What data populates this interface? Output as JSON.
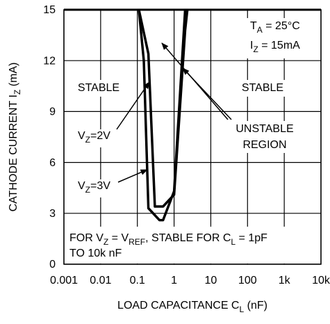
{
  "chart_data": {
    "type": "line",
    "x_label_parts": [
      "LOAD CAPACITANCE C",
      "L",
      " (nF)"
    ],
    "y_label_parts": [
      "CATHODE CURRENT I",
      "Z",
      " (mA)"
    ],
    "log_x": true,
    "grid": true,
    "xlim": [
      0.001,
      10000
    ],
    "xticks": [
      0.001,
      0.01,
      0.1,
      1,
      10,
      100,
      {
        "value": 1000,
        "label": "1k"
      },
      {
        "value": 10000,
        "label": "10k"
      }
    ],
    "ylim": [
      0,
      15
    ],
    "yticks": [
      0,
      3,
      6,
      9,
      12,
      15
    ],
    "series": [
      {
        "name": [
          "V",
          "Z",
          "=2V"
        ],
        "color": "#000000",
        "x": [
          0.11,
          0.2,
          0.3,
          0.5,
          1,
          2,
          2.3
        ],
        "values": [
          15,
          12.4,
          3.4,
          3.4,
          4.1,
          13.8,
          15
        ]
      },
      {
        "name": [
          "V",
          "Z",
          "=3V"
        ],
        "color": "#000000",
        "x": [
          0.11,
          0.15,
          0.2,
          0.4,
          0.5,
          1,
          2
        ],
        "values": [
          15,
          12,
          3.3,
          2.6,
          2.6,
          4.3,
          15
        ]
      }
    ],
    "annotations": {
      "ta": [
        "T",
        "A",
        " = 25°C"
      ],
      "iz": [
        "I",
        "Z",
        " = 15mA"
      ],
      "stable_left": [
        "STABLE"
      ],
      "stable_right": [
        "STABLE"
      ],
      "unstable1": [
        "UNSTABLE"
      ],
      "unstable2": [
        "REGION"
      ],
      "note1": [
        "FOR V",
        "Z",
        " = V",
        "REF",
        ", STABLE FOR C",
        "L",
        " = 1pF"
      ],
      "note2": [
        "TO 10k nF"
      ]
    }
  }
}
